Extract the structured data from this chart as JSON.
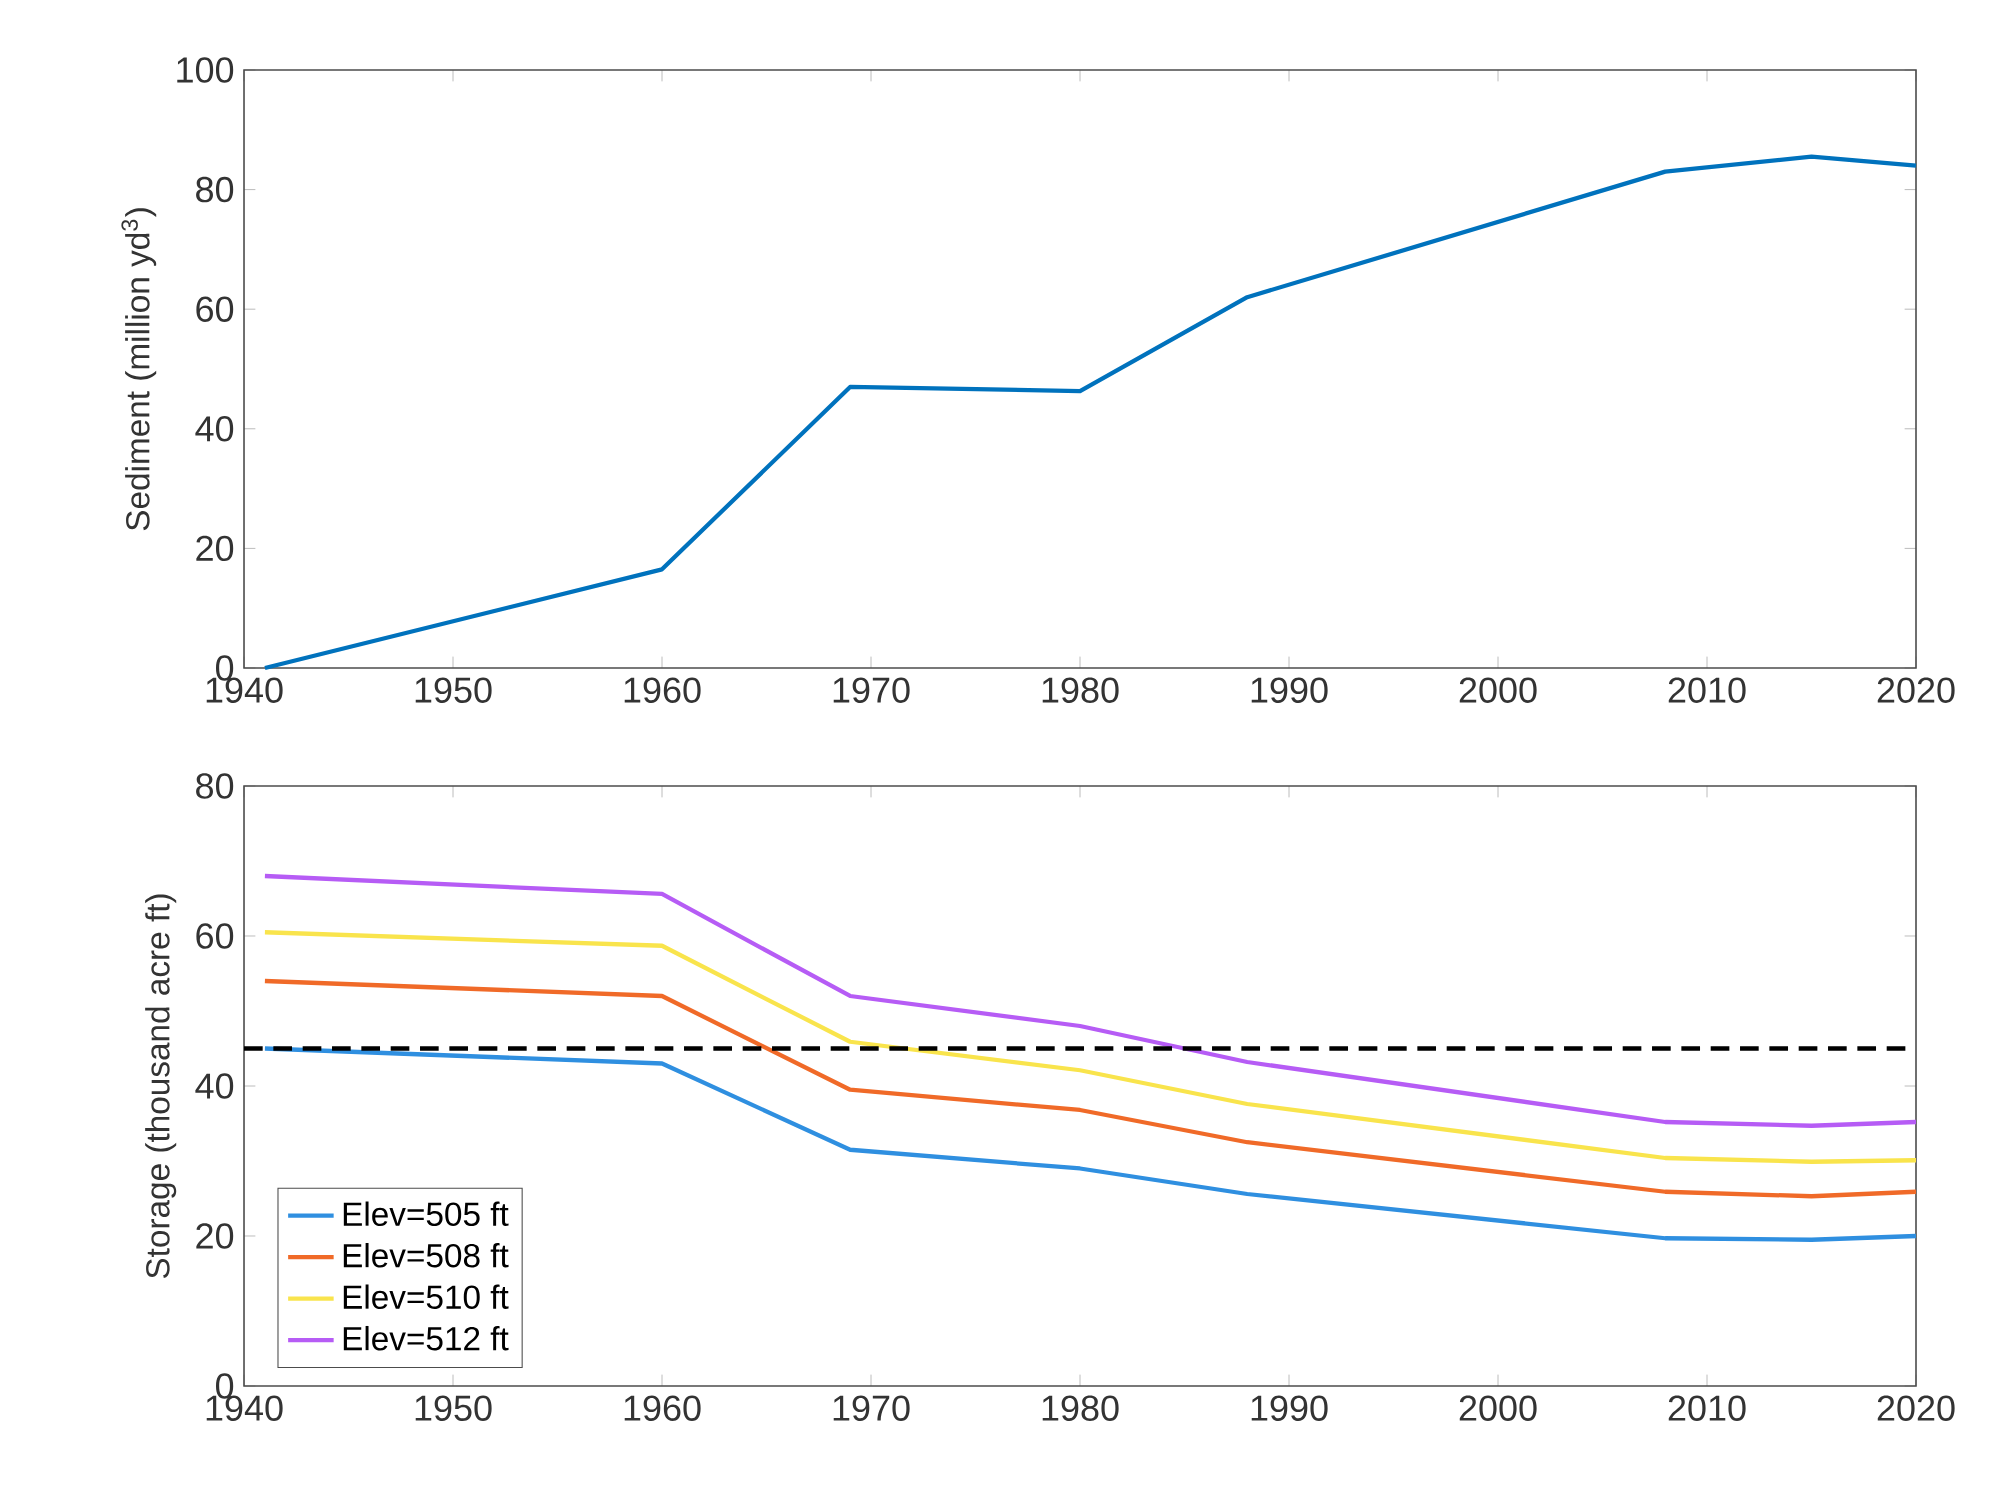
{
  "chart_data": [
    {
      "type": "line",
      "ylabel": "Sediment (million yd$^{3}$)",
      "x": [
        1941,
        1960,
        1969,
        1980,
        1988,
        2008,
        2015,
        2020
      ],
      "values": [
        0,
        16.5,
        47,
        46.3,
        62,
        83,
        85.5,
        84
      ],
      "color": "#0072bd",
      "xlim": [
        1940,
        2020
      ],
      "xticks": [
        1940,
        1950,
        1960,
        1970,
        1980,
        1990,
        2000,
        2010,
        2020
      ],
      "ylim": [
        0,
        100
      ],
      "yticks": [
        0,
        20,
        40,
        60,
        80,
        100
      ]
    },
    {
      "type": "line",
      "ylabel": "Storage (thousand acre ft)",
      "x": [
        1941,
        1960,
        1969,
        1980,
        1988,
        2008,
        2015,
        2020
      ],
      "series": [
        {
          "name": "Elev=505 ft",
          "color": "#2f8fe0",
          "values": [
            45,
            43,
            31.5,
            29,
            25.6,
            19.7,
            19.5,
            20
          ]
        },
        {
          "name": "Elev=508 ft",
          "color": "#f06a28",
          "values": [
            54,
            52,
            39.5,
            36.8,
            32.5,
            25.9,
            25.3,
            25.9
          ]
        },
        {
          "name": "Elev=510 ft",
          "color": "#f9e44c",
          "values": [
            60.5,
            58.7,
            45.9,
            42.1,
            37.6,
            30.4,
            29.9,
            30.1
          ]
        },
        {
          "name": "Elev=512 ft",
          "color": "#b65cf5",
          "values": [
            68,
            65.6,
            52,
            48,
            43.2,
            35.2,
            34.7,
            35.2
          ]
        }
      ],
      "ref_lines": [
        {
          "axis": "y",
          "value": 45,
          "color": "#000000",
          "line_style": "dashed"
        }
      ],
      "legend": "bottom left",
      "xlim": [
        1940,
        2020
      ],
      "xticks": [
        1940,
        1950,
        1960,
        1970,
        1980,
        1990,
        2000,
        2010,
        2020
      ],
      "ylim": [
        0,
        80
      ],
      "yticks": [
        0,
        20,
        40,
        60,
        80
      ]
    }
  ]
}
